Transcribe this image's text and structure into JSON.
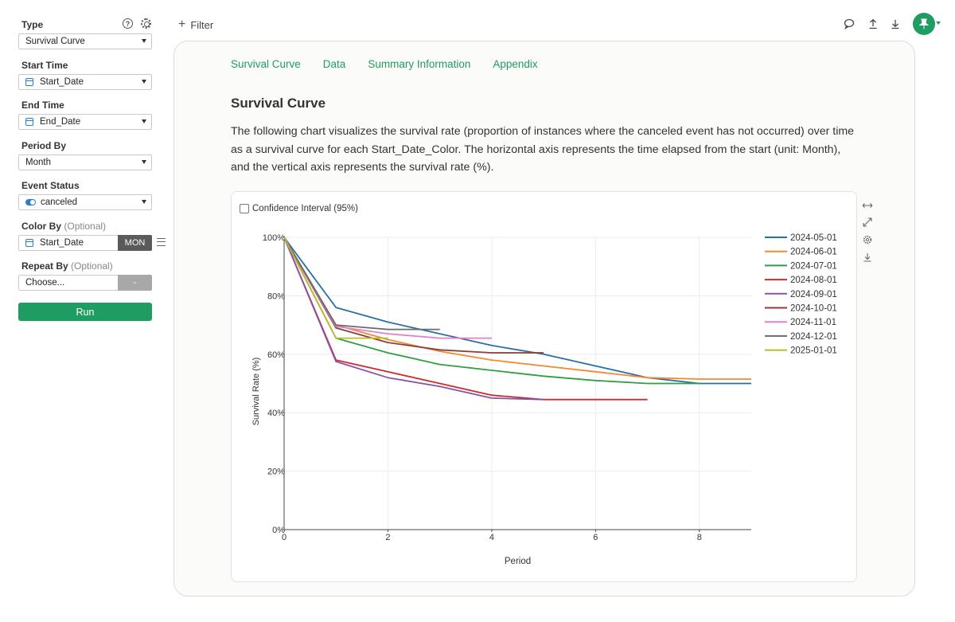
{
  "sidebar": {
    "type_label": "Type",
    "type_value": "Survival Curve",
    "start_time_label": "Start Time",
    "start_time_value": "Start_Date",
    "end_time_label": "End Time",
    "end_time_value": "End_Date",
    "period_by_label": "Period By",
    "period_by_value": "Month",
    "event_status_label": "Event Status",
    "event_status_value": "canceled",
    "color_by_label": "Color By",
    "color_by_optional": "(Optional)",
    "color_by_value": "Start_Date",
    "color_by_unit": "MON",
    "repeat_by_label": "Repeat By",
    "repeat_by_optional": "(Optional)",
    "repeat_by_value": "Choose...",
    "repeat_by_btn": "-",
    "run_label": "Run"
  },
  "topbar": {
    "filter_label": "Filter"
  },
  "tabs": [
    {
      "label": "Survival Curve"
    },
    {
      "label": "Data"
    },
    {
      "label": "Summary Information"
    },
    {
      "label": "Appendix"
    }
  ],
  "section": {
    "title": "Survival Curve",
    "description": "The following chart visualizes the survival rate (proportion of instances where the canceled event has not occurred) over time as a survival curve for each Start_Date_Color. The horizontal axis represents the time elapsed from the start (unit: Month), and the vertical axis represents the survival rate (%)."
  },
  "chart": {
    "confidence_label": "Confidence Interval (95%)"
  },
  "chart_data": {
    "type": "line",
    "title": "",
    "xlabel": "Period",
    "ylabel": "Survival Rate (%)",
    "xlim": [
      0,
      9
    ],
    "ylim": [
      0,
      100
    ],
    "x_ticks": [
      0,
      2,
      4,
      6,
      8
    ],
    "y_ticks": [
      0,
      20,
      40,
      60,
      80,
      100
    ],
    "y_tick_labels": [
      "0%",
      "20%",
      "40%",
      "60%",
      "80%",
      "100%"
    ],
    "grid": true,
    "legend_position": "right",
    "series": [
      {
        "name": "2024-05-01",
        "color": "#2a6fa8",
        "points": [
          [
            0,
            100
          ],
          [
            1,
            76
          ],
          [
            2,
            71
          ],
          [
            3,
            67
          ],
          [
            4,
            63
          ],
          [
            5,
            60
          ],
          [
            6,
            56
          ],
          [
            7,
            52
          ],
          [
            8,
            50
          ],
          [
            9,
            50
          ]
        ]
      },
      {
        "name": "2024-06-01",
        "color": "#f28a30",
        "points": [
          [
            0,
            100
          ],
          [
            1,
            70
          ],
          [
            2,
            65
          ],
          [
            3,
            61
          ],
          [
            4,
            58
          ],
          [
            5,
            56
          ],
          [
            6,
            54
          ],
          [
            7,
            52
          ],
          [
            8,
            51.5
          ],
          [
            9,
            51.5
          ]
        ]
      },
      {
        "name": "2024-07-01",
        "color": "#2ea043",
        "points": [
          [
            0,
            100
          ],
          [
            1,
            65.5
          ],
          [
            2,
            60.5
          ],
          [
            3,
            56.5
          ],
          [
            4,
            54.5
          ],
          [
            5,
            52.5
          ],
          [
            6,
            51
          ],
          [
            7,
            50
          ],
          [
            8,
            50
          ]
        ]
      },
      {
        "name": "2024-08-01",
        "color": "#cf2a2a",
        "points": [
          [
            0,
            100
          ],
          [
            1,
            58
          ],
          [
            2,
            54
          ],
          [
            3,
            50
          ],
          [
            4,
            46
          ],
          [
            5,
            44.5
          ],
          [
            6,
            44.5
          ],
          [
            7,
            44.5
          ]
        ]
      },
      {
        "name": "2024-09-01",
        "color": "#8a52a8",
        "points": [
          [
            0,
            100
          ],
          [
            1,
            57.5
          ],
          [
            2,
            52
          ],
          [
            3,
            49
          ],
          [
            4,
            45
          ],
          [
            5,
            44.5
          ]
        ]
      },
      {
        "name": "2024-10-01",
        "color": "#8a3f3a",
        "points": [
          [
            0,
            100
          ],
          [
            1,
            69
          ],
          [
            2,
            64
          ],
          [
            3,
            61.5
          ],
          [
            4,
            60.5
          ],
          [
            5,
            60.5
          ]
        ]
      },
      {
        "name": "2024-11-01",
        "color": "#e37fcc",
        "points": [
          [
            0,
            100
          ],
          [
            1,
            69.5
          ],
          [
            2,
            67
          ],
          [
            3,
            65.5
          ],
          [
            4,
            65.5
          ]
        ]
      },
      {
        "name": "2024-12-01",
        "color": "#6b6b6b",
        "points": [
          [
            0,
            100
          ],
          [
            1,
            70
          ],
          [
            2,
            68.5
          ],
          [
            3,
            68.5
          ]
        ]
      },
      {
        "name": "2025-01-01",
        "color": "#bdbb2a",
        "points": [
          [
            0,
            100
          ],
          [
            1,
            65.5
          ],
          [
            2,
            65.5
          ]
        ]
      }
    ]
  }
}
